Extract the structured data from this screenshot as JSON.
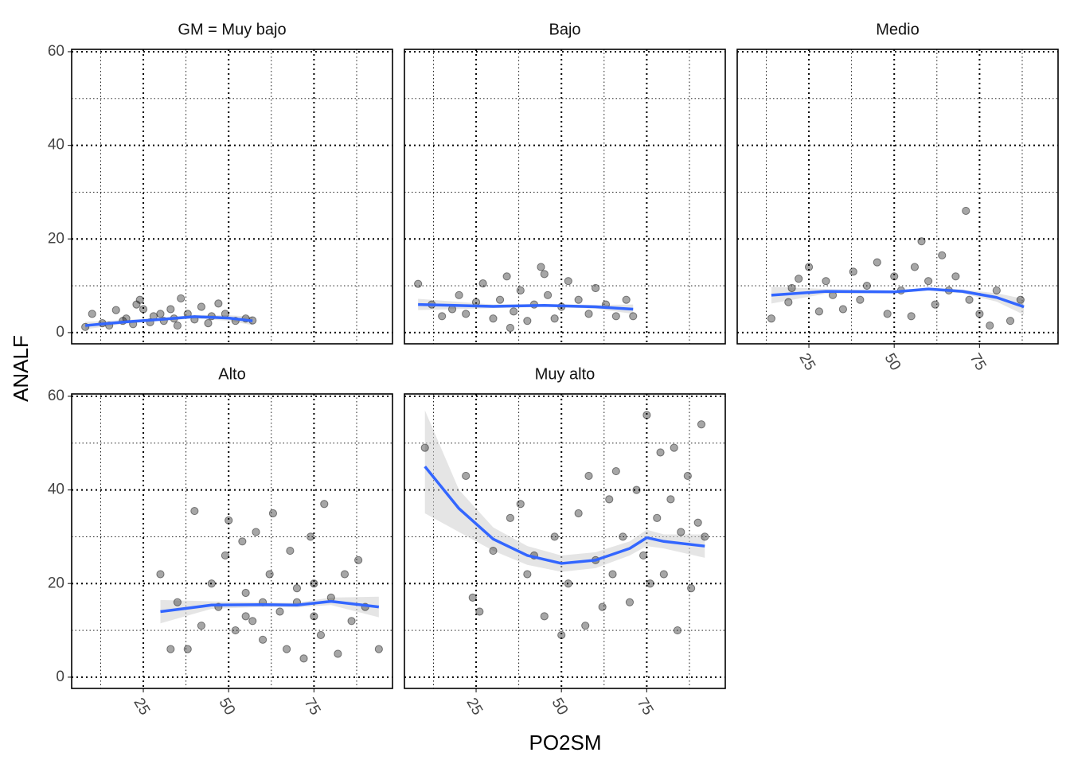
{
  "chart_data": {
    "type": "scatter",
    "x_label": "PO2SM",
    "y_label": "ANALF",
    "xlim": [
      4,
      98
    ],
    "ylim": [
      -2.4,
      60.5
    ],
    "xticks": [
      25,
      50,
      75
    ],
    "yticks": [
      0,
      20,
      40,
      60
    ],
    "x_minor_grid": [
      12.5,
      37.5,
      62.5,
      87.5
    ],
    "y_minor_grid": [
      10,
      30,
      50
    ],
    "grid": true,
    "point_color": "#000000",
    "smooth_color": "#3366FF",
    "band_color": "#d0d0d0",
    "panels": [
      {
        "title": "GM = Muy bajo",
        "x": [
          8,
          10,
          13,
          15,
          17,
          19,
          20,
          22,
          24,
          25,
          27,
          28,
          30,
          31,
          33,
          34,
          36,
          38,
          40,
          42,
          45,
          47,
          49,
          52,
          55,
          57,
          23,
          35,
          44
        ],
        "y": [
          1.2,
          4,
          2,
          1.5,
          4.8,
          2.5,
          3,
          1.8,
          7,
          5,
          2.2,
          3.5,
          4,
          2.5,
          5,
          3,
          7.3,
          4,
          2.8,
          5.5,
          3.5,
          6.2,
          4,
          2.5,
          3,
          2.6,
          6,
          1.5,
          2
        ],
        "smooth_x": [
          8,
          20,
          30,
          40,
          50,
          57
        ],
        "smooth_y": [
          1.5,
          2.3,
          2.8,
          3.4,
          3.1,
          2.5
        ],
        "smooth_lower": [
          0.7,
          1.9,
          2.5,
          3.0,
          2.5,
          1.6
        ],
        "smooth_upper": [
          2.3,
          2.7,
          3.1,
          3.8,
          3.7,
          3.4
        ]
      },
      {
        "title": "Bajo",
        "x": [
          8,
          12,
          15,
          18,
          20,
          22,
          25,
          27,
          30,
          32,
          34,
          36,
          38,
          40,
          42,
          44,
          46,
          48,
          50,
          52,
          55,
          58,
          60,
          63,
          66,
          69,
          71,
          35,
          45
        ],
        "y": [
          10.4,
          6,
          3.5,
          5,
          8,
          4,
          6.5,
          10.5,
          3,
          7,
          12,
          4.5,
          9,
          2.5,
          6,
          14,
          8,
          3,
          5.5,
          11,
          7,
          4,
          9.5,
          6,
          3.5,
          7,
          3.5,
          1,
          12.5
        ],
        "smooth_x": [
          8,
          30,
          45,
          60,
          71
        ],
        "smooth_y": [
          6,
          5.6,
          5.8,
          5.5,
          5
        ],
        "smooth_lower": [
          4.8,
          5.2,
          5.5,
          5.1,
          4.0
        ],
        "smooth_upper": [
          7.2,
          6.0,
          6.1,
          5.9,
          6.0
        ]
      },
      {
        "title": "Medio",
        "x": [
          14,
          19,
          20,
          22,
          25,
          28,
          30,
          32,
          35,
          38,
          40,
          42,
          45,
          48,
          50,
          52,
          55,
          58,
          60,
          62,
          64,
          66,
          68,
          71,
          72,
          75,
          78,
          80,
          84,
          87,
          56
        ],
        "y": [
          3,
          6.5,
          9.5,
          11.5,
          14,
          4.5,
          11,
          8,
          5,
          13,
          7,
          10,
          15,
          4,
          12,
          9,
          3.5,
          19.5,
          11,
          6,
          16.5,
          9,
          12,
          26,
          7,
          4,
          1.5,
          9,
          2.5,
          7,
          14
        ],
        "smooth_x": [
          14,
          30,
          50,
          60,
          70,
          80,
          88
        ],
        "smooth_y": [
          8,
          8.8,
          8.7,
          9.3,
          8.8,
          7.5,
          5.5
        ],
        "smooth_lower": [
          6.2,
          8.3,
          8.4,
          9.0,
          8.4,
          6.6,
          3.8
        ],
        "smooth_upper": [
          9.8,
          9.3,
          9.0,
          9.6,
          9.2,
          8.4,
          7.2
        ]
      },
      {
        "title": "Alto",
        "x": [
          30,
          33,
          35,
          38,
          40,
          42,
          45,
          47,
          49,
          50,
          52,
          54,
          55,
          57,
          58,
          60,
          62,
          63,
          65,
          67,
          68,
          70,
          72,
          74,
          75,
          77,
          78,
          80,
          82,
          84,
          86,
          88,
          90,
          94,
          60,
          70,
          55,
          75
        ],
        "y": [
          22,
          6,
          16,
          6,
          35.5,
          11,
          20,
          15,
          26,
          33.5,
          10,
          29,
          18,
          12,
          31,
          8,
          22,
          35,
          14,
          6,
          27,
          19,
          4,
          30,
          13,
          9,
          37,
          17,
          5,
          22,
          12,
          25,
          15,
          6,
          16,
          16,
          13,
          20
        ],
        "smooth_x": [
          30,
          45,
          60,
          70,
          80,
          94
        ],
        "smooth_y": [
          14,
          15.4,
          15.5,
          15.4,
          16.2,
          15
        ],
        "smooth_lower": [
          11.5,
          14.6,
          15.0,
          14.9,
          15.4,
          12.8
        ],
        "smooth_upper": [
          16.5,
          16.2,
          16.0,
          15.9,
          17.0,
          17.2
        ]
      },
      {
        "title": "Muy alto",
        "x": [
          10,
          22,
          24,
          30,
          35,
          38,
          40,
          42,
          45,
          48,
          50,
          52,
          55,
          57,
          58,
          60,
          62,
          64,
          65,
          66,
          68,
          70,
          72,
          74,
          75,
          76,
          78,
          79,
          80,
          82,
          83,
          84,
          85,
          87,
          88,
          90,
          91,
          92,
          26
        ],
        "y": [
          49,
          43,
          17,
          27,
          34,
          37,
          22,
          26,
          13,
          30,
          9,
          20,
          35,
          11,
          43,
          25,
          15,
          38,
          22,
          44,
          30,
          16,
          40,
          26,
          56,
          20,
          34,
          48,
          22,
          38,
          49,
          10,
          31,
          43,
          19,
          33,
          54,
          30,
          14
        ],
        "smooth_x": [
          10,
          20,
          30,
          40,
          50,
          60,
          70,
          75,
          80,
          92
        ],
        "smooth_y": [
          45,
          36,
          29.5,
          26,
          24.3,
          25,
          27.5,
          29.8,
          29,
          28
        ],
        "smooth_lower": [
          35,
          31,
          27,
          24,
          22.5,
          23.3,
          26,
          28,
          27.5,
          25.5
        ],
        "smooth_upper": [
          57,
          40,
          32,
          28,
          26,
          26.7,
          29,
          31.5,
          30.5,
          30.5
        ]
      }
    ]
  }
}
